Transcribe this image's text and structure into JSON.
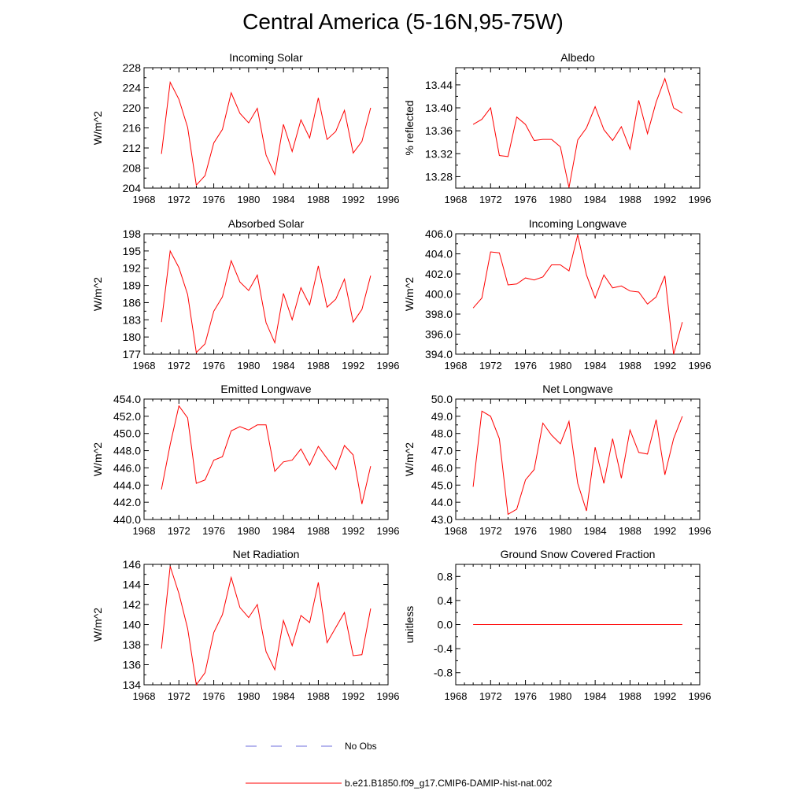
{
  "title": "Central America (5-16N,95-75W)",
  "colors": {
    "model": "#ff0000",
    "obs": "#6e6edc",
    "axis": "#000000"
  },
  "legend": [
    {
      "label": "No Obs",
      "style": "dashed",
      "color": "#6e6edc"
    },
    {
      "label": "b.e21.B1850.f09_g17.CMIP6-DAMIP-hist-nat.002",
      "style": "solid",
      "color": "#ff0000"
    }
  ],
  "chart_data": [
    {
      "type": "line",
      "title": "Incoming Solar",
      "ylabel": "W/m^2",
      "xlim": [
        1968,
        1996
      ],
      "xticks": [
        "1968",
        "1972",
        "1976",
        "1980",
        "1984",
        "1988",
        "1992",
        "1996"
      ],
      "ylim": [
        204,
        228
      ],
      "yticks": [
        "204",
        "208",
        "212",
        "216",
        "220",
        "224",
        "228"
      ],
      "grid": false,
      "x": [
        1970,
        1971,
        1972,
        1973,
        1974,
        1975,
        1976,
        1977,
        1978,
        1979,
        1980,
        1981,
        1982,
        1983,
        1984,
        1985,
        1986,
        1987,
        1988,
        1989,
        1990,
        1991,
        1992,
        1993,
        1994
      ],
      "series": [
        {
          "name": "b.e21.B1850.f09_g17.CMIP6-DAMIP-hist-nat.002",
          "values": [
            210.8,
            225.1,
            221.7,
            216.1,
            204.6,
            206.5,
            213.0,
            215.7,
            223.0,
            218.9,
            217.0,
            219.9,
            210.6,
            206.7,
            216.7,
            211.3,
            217.6,
            214.0,
            222.0,
            213.7,
            215.3,
            219.5,
            211.0,
            213.3,
            220.0
          ]
        }
      ]
    },
    {
      "type": "line",
      "title": "Albedo",
      "ylabel": "% reflected",
      "xlim": [
        1968,
        1996
      ],
      "xticks": [
        "1968",
        "1972",
        "1976",
        "1980",
        "1984",
        "1988",
        "1992",
        "1996"
      ],
      "ylim": [
        13.26,
        13.47
      ],
      "yticks": [
        "13.28",
        "13.32",
        "13.36",
        "13.40",
        "13.44"
      ],
      "grid": false,
      "x": [
        1970,
        1971,
        1972,
        1973,
        1974,
        1975,
        1976,
        1977,
        1978,
        1979,
        1980,
        1981,
        1982,
        1983,
        1984,
        1985,
        1986,
        1987,
        1988,
        1989,
        1990,
        1991,
        1992,
        1993,
        1994
      ],
      "series": [
        {
          "name": "b.e21.B1850.f09_g17.CMIP6-DAMIP-hist-nat.002",
          "values": [
            13.371,
            13.38,
            13.4,
            13.317,
            13.315,
            13.384,
            13.371,
            13.343,
            13.345,
            13.345,
            13.332,
            13.261,
            13.344,
            13.365,
            13.402,
            13.362,
            13.343,
            13.367,
            13.328,
            13.413,
            13.355,
            13.41,
            13.451,
            13.4,
            13.391
          ]
        }
      ]
    },
    {
      "type": "line",
      "title": "Absorbed Solar",
      "ylabel": "W/m^2",
      "xlim": [
        1968,
        1996
      ],
      "xticks": [
        "1968",
        "1972",
        "1976",
        "1980",
        "1984",
        "1988",
        "1992",
        "1996"
      ],
      "ylim": [
        177,
        198
      ],
      "yticks": [
        "177",
        "180",
        "183",
        "186",
        "189",
        "192",
        "195",
        "198"
      ],
      "grid": false,
      "x": [
        1970,
        1971,
        1972,
        1973,
        1974,
        1975,
        1976,
        1977,
        1978,
        1979,
        1980,
        1981,
        1982,
        1983,
        1984,
        1985,
        1986,
        1987,
        1988,
        1989,
        1990,
        1991,
        1992,
        1993,
        1994
      ],
      "series": [
        {
          "name": "b.e21.B1850.f09_g17.CMIP6-DAMIP-hist-nat.002",
          "values": [
            182.6,
            195.0,
            192.1,
            187.4,
            177.3,
            178.8,
            184.5,
            187.0,
            193.3,
            189.6,
            188.1,
            190.8,
            182.5,
            179.0,
            187.6,
            183.0,
            188.6,
            185.6,
            192.4,
            185.2,
            186.6,
            190.1,
            182.6,
            184.8,
            190.7
          ]
        }
      ]
    },
    {
      "type": "line",
      "title": "Incoming Longwave",
      "ylabel": "W/m^2",
      "xlim": [
        1968,
        1996
      ],
      "xticks": [
        "1968",
        "1972",
        "1976",
        "1980",
        "1984",
        "1988",
        "1992",
        "1996"
      ],
      "ylim": [
        394.0,
        406.0
      ],
      "yticks": [
        "394.0",
        "396.0",
        "398.0",
        "400.0",
        "402.0",
        "404.0",
        "406.0"
      ],
      "grid": false,
      "x": [
        1970,
        1971,
        1972,
        1973,
        1974,
        1975,
        1976,
        1977,
        1978,
        1979,
        1980,
        1981,
        1982,
        1983,
        1984,
        1985,
        1986,
        1987,
        1988,
        1989,
        1990,
        1991,
        1992,
        1993,
        1994
      ],
      "series": [
        {
          "name": "b.e21.B1850.f09_g17.CMIP6-DAMIP-hist-nat.002",
          "values": [
            398.6,
            399.6,
            404.2,
            404.1,
            400.9,
            401.0,
            401.6,
            401.4,
            401.7,
            402.9,
            402.9,
            402.3,
            405.9,
            401.9,
            399.6,
            401.9,
            400.6,
            400.8,
            400.3,
            400.2,
            399.0,
            399.7,
            401.8,
            394.0,
            397.2
          ]
        }
      ]
    },
    {
      "type": "line",
      "title": "Emitted Longwave",
      "ylabel": "W/m^2",
      "xlim": [
        1968,
        1996
      ],
      "xticks": [
        "1968",
        "1972",
        "1976",
        "1980",
        "1984",
        "1988",
        "1992",
        "1996"
      ],
      "ylim": [
        440.0,
        454.0
      ],
      "yticks": [
        "440.0",
        "442.0",
        "444.0",
        "446.0",
        "448.0",
        "450.0",
        "452.0",
        "454.0"
      ],
      "grid": false,
      "x": [
        1970,
        1971,
        1972,
        1973,
        1974,
        1975,
        1976,
        1977,
        1978,
        1979,
        1980,
        1981,
        1982,
        1983,
        1984,
        1985,
        1986,
        1987,
        1988,
        1989,
        1990,
        1991,
        1992,
        1993,
        1994
      ],
      "series": [
        {
          "name": "b.e21.B1850.f09_g17.CMIP6-DAMIP-hist-nat.002",
          "values": [
            443.5,
            448.7,
            453.2,
            451.8,
            444.2,
            444.6,
            446.9,
            447.3,
            450.3,
            450.8,
            450.4,
            451.0,
            451.0,
            445.6,
            446.7,
            446.9,
            448.2,
            446.3,
            448.5,
            447.1,
            445.8,
            448.6,
            447.5,
            441.8,
            446.2
          ]
        }
      ]
    },
    {
      "type": "line",
      "title": "Net Longwave",
      "ylabel": "W/m^2",
      "xlim": [
        1968,
        1996
      ],
      "xticks": [
        "1968",
        "1972",
        "1976",
        "1980",
        "1984",
        "1988",
        "1992",
        "1996"
      ],
      "ylim": [
        43.0,
        50.0
      ],
      "yticks": [
        "43.0",
        "44.0",
        "45.0",
        "46.0",
        "47.0",
        "48.0",
        "49.0",
        "50.0"
      ],
      "grid": false,
      "x": [
        1970,
        1971,
        1972,
        1973,
        1974,
        1975,
        1976,
        1977,
        1978,
        1979,
        1980,
        1981,
        1982,
        1983,
        1984,
        1985,
        1986,
        1987,
        1988,
        1989,
        1990,
        1991,
        1992,
        1993,
        1994
      ],
      "series": [
        {
          "name": "b.e21.B1850.f09_g17.CMIP6-DAMIP-hist-nat.002",
          "values": [
            44.9,
            49.3,
            49.0,
            47.7,
            43.3,
            43.6,
            45.3,
            45.9,
            48.6,
            47.9,
            47.4,
            48.7,
            45.1,
            43.5,
            47.2,
            45.1,
            47.7,
            45.4,
            48.2,
            46.9,
            46.8,
            48.8,
            45.6,
            47.7,
            49.0
          ]
        }
      ]
    },
    {
      "type": "line",
      "title": "Net Radiation",
      "ylabel": "W/m^2",
      "xlim": [
        1968,
        1996
      ],
      "xticks": [
        "1968",
        "1972",
        "1976",
        "1980",
        "1984",
        "1988",
        "1992",
        "1996"
      ],
      "ylim": [
        134,
        146
      ],
      "yticks": [
        "134",
        "136",
        "138",
        "140",
        "142",
        "144",
        "146"
      ],
      "grid": false,
      "x": [
        1970,
        1971,
        1972,
        1973,
        1974,
        1975,
        1976,
        1977,
        1978,
        1979,
        1980,
        1981,
        1982,
        1983,
        1984,
        1985,
        1986,
        1987,
        1988,
        1989,
        1990,
        1991,
        1992,
        1993,
        1994
      ],
      "series": [
        {
          "name": "b.e21.B1850.f09_g17.CMIP6-DAMIP-hist-nat.002",
          "values": [
            137.6,
            145.8,
            143.1,
            139.6,
            134.0,
            135.2,
            139.2,
            141.0,
            144.7,
            141.7,
            140.7,
            142.0,
            137.3,
            135.5,
            140.4,
            137.9,
            140.9,
            140.2,
            144.2,
            138.2,
            139.7,
            141.2,
            136.9,
            137.0,
            141.6
          ]
        }
      ]
    },
    {
      "type": "line",
      "title": "Ground Snow Covered Fraction",
      "ylabel": "unitless",
      "xlim": [
        1968,
        1996
      ],
      "xticks": [
        "1968",
        "1972",
        "1976",
        "1980",
        "1984",
        "1988",
        "1992",
        "1996"
      ],
      "ylim": [
        -1.0,
        1.0
      ],
      "yticks": [
        "-0.8",
        "-0.4",
        "0.0",
        "0.4",
        "0.8"
      ],
      "grid": false,
      "x": [
        1970,
        1971,
        1972,
        1973,
        1974,
        1975,
        1976,
        1977,
        1978,
        1979,
        1980,
        1981,
        1982,
        1983,
        1984,
        1985,
        1986,
        1987,
        1988,
        1989,
        1990,
        1991,
        1992,
        1993,
        1994
      ],
      "series": [
        {
          "name": "b.e21.B1850.f09_g17.CMIP6-DAMIP-hist-nat.002",
          "values": [
            0,
            0,
            0,
            0,
            0,
            0,
            0,
            0,
            0,
            0,
            0,
            0,
            0,
            0,
            0,
            0,
            0,
            0,
            0,
            0,
            0,
            0,
            0,
            0,
            0
          ]
        }
      ]
    }
  ]
}
